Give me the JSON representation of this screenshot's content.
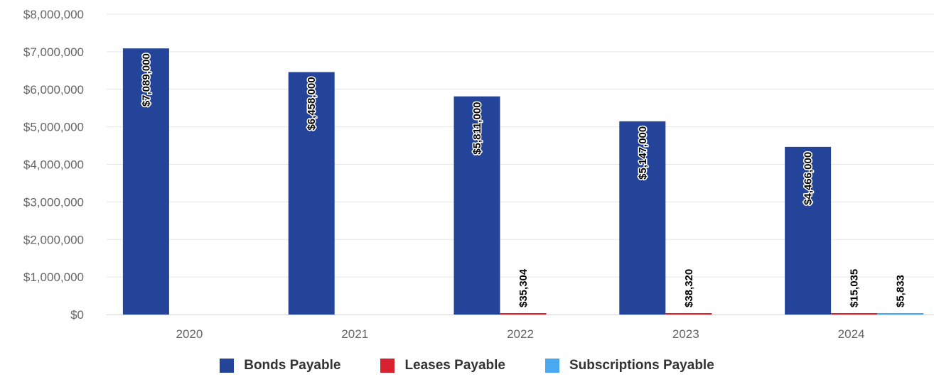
{
  "chart_data": {
    "type": "bar",
    "categories": [
      "2020",
      "2021",
      "2022",
      "2023",
      "2024"
    ],
    "series": [
      {
        "name": "Bonds Payable",
        "color": "#24449a",
        "values": [
          7089000,
          6458000,
          5811000,
          5147000,
          4466000
        ],
        "labels": [
          "$7,089,000",
          "$6,458,000",
          "$5,811,000",
          "$5,147,000",
          "$4,466,000"
        ]
      },
      {
        "name": "Leases Payable",
        "color": "#d7212e",
        "values": [
          null,
          null,
          35304,
          38320,
          15035
        ],
        "labels": [
          "",
          "",
          "$35,304",
          "$38,320",
          "$15,035"
        ]
      },
      {
        "name": "Subscriptions Payable",
        "color": "#4aa8f0",
        "values": [
          null,
          null,
          null,
          null,
          5833
        ],
        "labels": [
          "",
          "",
          "",
          "",
          "$5,833"
        ]
      }
    ],
    "ylim": [
      0,
      8000000
    ],
    "yticks": [
      0,
      1000000,
      2000000,
      3000000,
      4000000,
      5000000,
      6000000,
      7000000,
      8000000
    ],
    "ytick_labels": [
      "$0",
      "$1,000,000",
      "$2,000,000",
      "$3,000,000",
      "$4,000,000",
      "$5,000,000",
      "$6,000,000",
      "$7,000,000",
      "$8,000,000"
    ],
    "grid": true,
    "legend_position": "bottom-center"
  }
}
